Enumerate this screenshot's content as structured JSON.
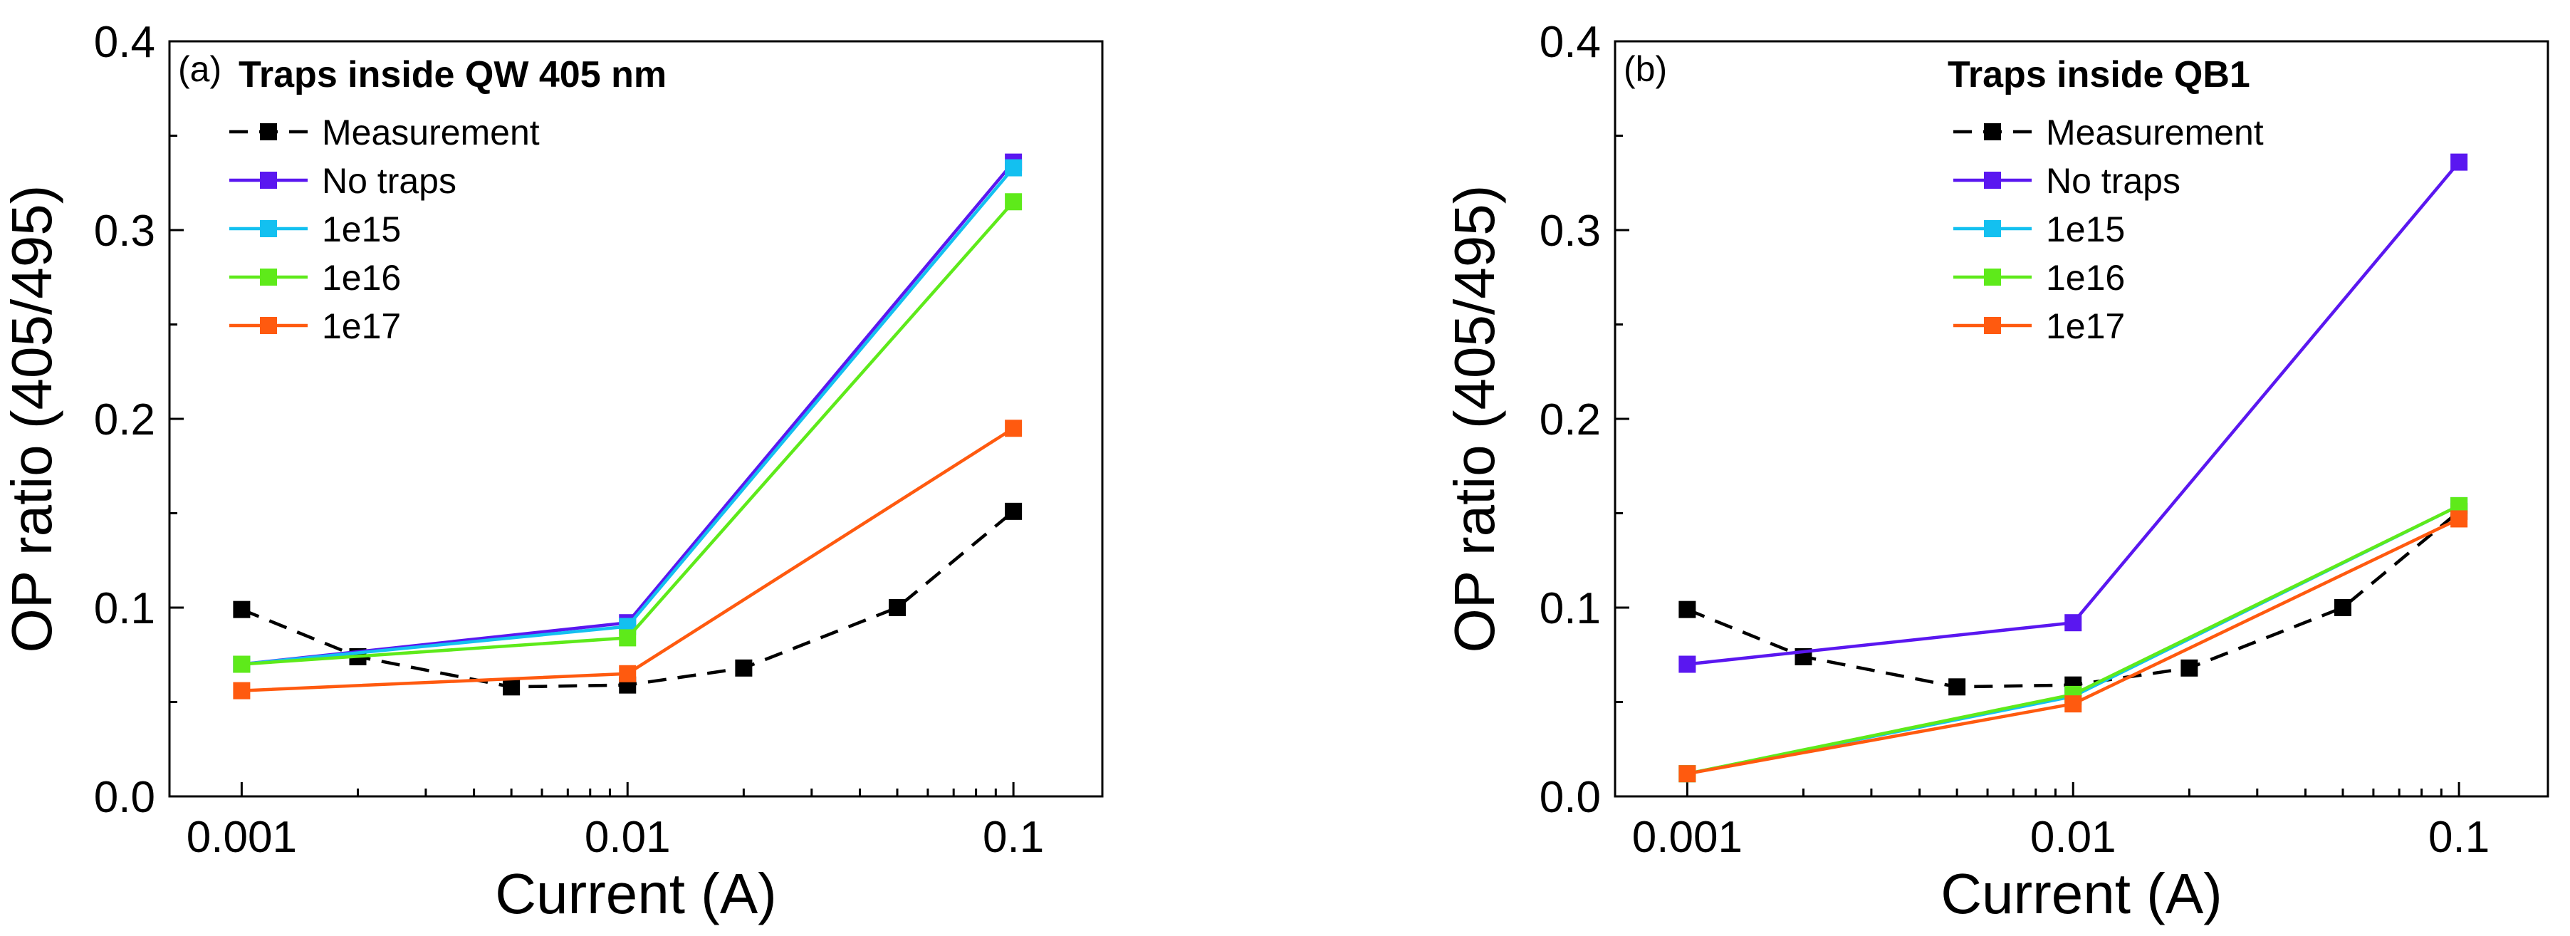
{
  "chart_data": [
    {
      "type": "line",
      "panel_label": "(a)",
      "title": "Traps inside QW 405 nm",
      "xlabel": "Current (A)",
      "ylabel": "OP ratio (405/495)",
      "xscale": "log",
      "xlim": [
        0.00065,
        0.17
      ],
      "ylim": [
        0.0,
        0.4
      ],
      "xticks": [
        0.001,
        0.01,
        0.1
      ],
      "xtick_labels": [
        "0.001",
        "0.01",
        "0.1"
      ],
      "yticks": [
        0.0,
        0.1,
        0.2,
        0.3,
        0.4
      ],
      "ytick_labels": [
        "0.0",
        "0.1",
        "0.2",
        "0.3",
        "0.4"
      ],
      "legend_position": "top-left",
      "series": [
        {
          "name": "Measurement",
          "color": "#000000",
          "dash": true,
          "x": [
            0.001,
            0.002,
            0.005,
            0.01,
            0.02,
            0.05,
            0.1
          ],
          "y": [
            0.099,
            0.074,
            0.058,
            0.059,
            0.068,
            0.1,
            0.151
          ]
        },
        {
          "name": "No traps",
          "color": "#5a17f0",
          "dash": false,
          "x": [
            0.001,
            0.01,
            0.1
          ],
          "y": [
            0.07,
            0.092,
            0.336
          ]
        },
        {
          "name": "1e15",
          "color": "#13c0f0",
          "dash": false,
          "x": [
            0.001,
            0.01,
            0.1
          ],
          "y": [
            0.07,
            0.09,
            0.333
          ]
        },
        {
          "name": "1e16",
          "color": "#5eea1a",
          "dash": false,
          "x": [
            0.001,
            0.01,
            0.1
          ],
          "y": [
            0.07,
            0.084,
            0.315
          ]
        },
        {
          "name": "1e17",
          "color": "#ff5a0f",
          "dash": false,
          "x": [
            0.001,
            0.01,
            0.1
          ],
          "y": [
            0.056,
            0.065,
            0.195
          ]
        }
      ]
    },
    {
      "type": "line",
      "panel_label": "(b)",
      "title": "Traps inside QB1",
      "xlabel": "Current (A)",
      "ylabel": "OP ratio (405/495)",
      "xscale": "log",
      "xlim": [
        0.00065,
        0.17
      ],
      "ylim": [
        0.0,
        0.4
      ],
      "xticks": [
        0.001,
        0.01,
        0.1
      ],
      "xtick_labels": [
        "0.001",
        "0.01",
        "0.1"
      ],
      "yticks": [
        0.0,
        0.1,
        0.2,
        0.3,
        0.4
      ],
      "ytick_labels": [
        "0.0",
        "0.1",
        "0.2",
        "0.3",
        "0.4"
      ],
      "legend_position": "top-center",
      "series": [
        {
          "name": "Measurement",
          "color": "#000000",
          "dash": true,
          "x": [
            0.001,
            0.002,
            0.005,
            0.01,
            0.02,
            0.05,
            0.1
          ],
          "y": [
            0.099,
            0.074,
            0.058,
            0.059,
            0.068,
            0.1,
            0.151
          ]
        },
        {
          "name": "No traps",
          "color": "#5a17f0",
          "dash": false,
          "x": [
            0.001,
            0.01,
            0.1
          ],
          "y": [
            0.07,
            0.092,
            0.336
          ]
        },
        {
          "name": "1e15",
          "color": "#13c0f0",
          "dash": false,
          "x": [
            0.001,
            0.01,
            0.1
          ],
          "y": [
            0.012,
            0.053,
            0.154
          ]
        },
        {
          "name": "1e16",
          "color": "#5eea1a",
          "dash": false,
          "x": [
            0.001,
            0.01,
            0.1
          ],
          "y": [
            0.012,
            0.054,
            0.154
          ]
        },
        {
          "name": "1e17",
          "color": "#ff5a0f",
          "dash": false,
          "x": [
            0.001,
            0.01,
            0.1
          ],
          "y": [
            0.012,
            0.049,
            0.147
          ]
        }
      ]
    }
  ]
}
